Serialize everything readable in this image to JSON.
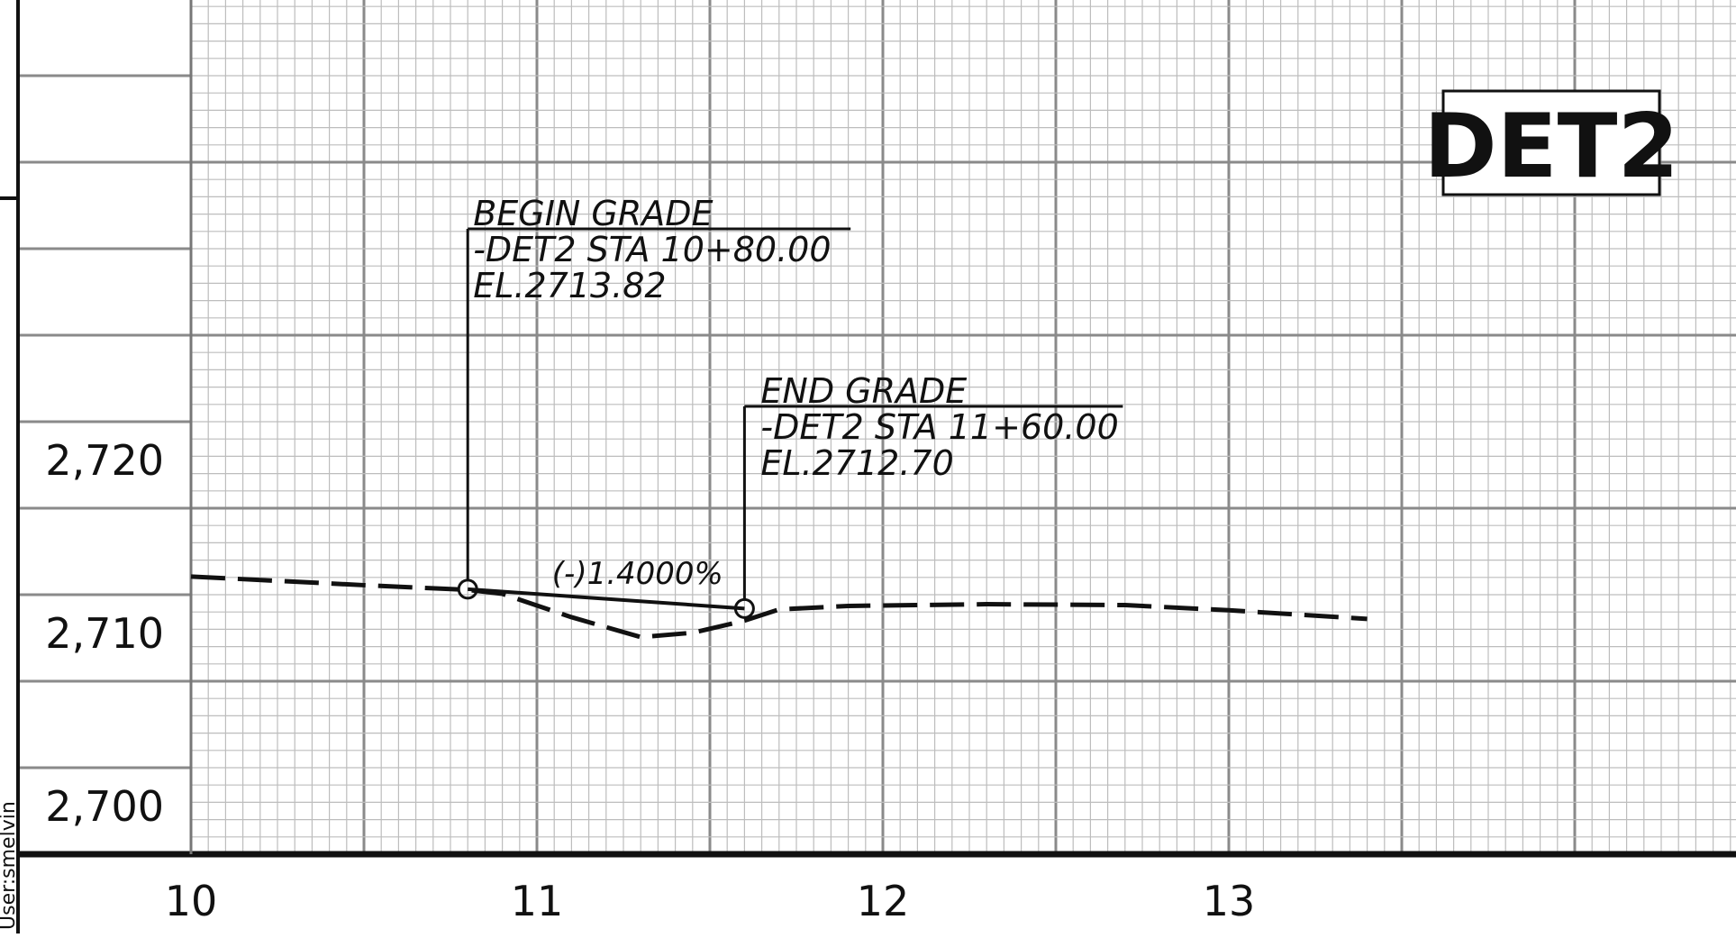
{
  "sheet": {
    "detail_tag": "DET2",
    "side_text": "User:smelvin"
  },
  "axes": {
    "x_ticks": [
      {
        "value": 10,
        "label": "10"
      },
      {
        "value": 11,
        "label": "11"
      },
      {
        "value": 12,
        "label": "12"
      },
      {
        "value": 13,
        "label": "13"
      }
    ],
    "y_ticks": [
      {
        "value": 2700,
        "label": "2,700"
      },
      {
        "value": 2710,
        "label": "2,710"
      },
      {
        "value": 2720,
        "label": "2,720"
      }
    ],
    "x_range": [
      9.5,
      14.5
    ],
    "y_range": [
      2698.5,
      2748.5
    ]
  },
  "profile": {
    "existing_ground_dashed": [
      [
        10.0,
        2714.55
      ],
      [
        10.5,
        2714.05
      ],
      [
        10.8,
        2713.78
      ],
      [
        10.9,
        2713.55
      ],
      [
        11.1,
        2712.2
      ],
      [
        11.3,
        2711.05
      ],
      [
        11.45,
        2711.3
      ],
      [
        11.6,
        2712.0
      ],
      [
        11.7,
        2712.65
      ],
      [
        11.9,
        2712.85
      ],
      [
        12.3,
        2712.95
      ],
      [
        12.7,
        2712.9
      ],
      [
        13.0,
        2712.6
      ],
      [
        13.4,
        2712.1
      ]
    ],
    "grade_line": {
      "begin": {
        "station": 10.8,
        "elevation": 2713.82
      },
      "end": {
        "station": 11.6,
        "elevation": 2712.7
      },
      "slope_label": "(-)1.4000%"
    }
  },
  "annotations": {
    "begin": {
      "line1": "BEGIN GRADE",
      "line2": "-DET2 STA 10+80.00",
      "line3": "EL.2713.82"
    },
    "end": {
      "line1": "END GRADE",
      "line2": "-DET2 STA 11+60.00",
      "line3": "EL.2712.70"
    }
  }
}
